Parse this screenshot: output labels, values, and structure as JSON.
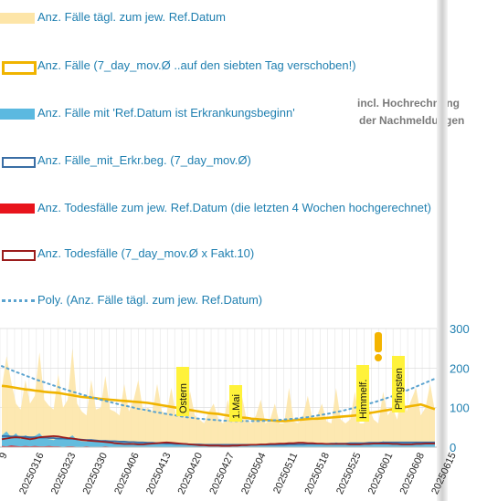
{
  "legend": [
    {
      "label": "Anz. Fälle tägl. zum jew. Ref.Datum",
      "swatch": "area",
      "color": "#fde5a8"
    },
    {
      "label": "Anz. Fälle (7_day_mov.Ø ..auf den siebten Tag verschoben!)",
      "swatch": "box",
      "color": "#f0b400"
    },
    {
      "label": "Anz. Fälle mit 'Ref.Datum ist Erkrankungsbeginn'",
      "swatch": "area",
      "color": "#5bb9e0"
    },
    {
      "label": "Anz. Fälle_mit_Erkr.beg. (7_day_mov.Ø)",
      "swatch": "box",
      "color": "#3a6ea5"
    },
    {
      "label": "Anz. Todesfälle zum jew. Ref.Datum (die letzten 4 Wochen hochgerechnet)",
      "swatch": "area",
      "color": "#e8141c"
    },
    {
      "label": "Anz. Todesfälle (7_day_mov.Ø x Fakt.10)",
      "swatch": "box",
      "color": "#9b1c1c"
    },
    {
      "label": "Poly. (Anz. Fälle tägl. zum jew. Ref.Datum)",
      "swatch": "dots",
      "color": "#5ba3cf"
    }
  ],
  "note": {
    "line1": "incl. Hochrechnung",
    "line2": "der Nachmeldungen"
  },
  "chart_data": {
    "type": "area",
    "ylim": [
      0,
      300
    ],
    "yticks": [
      0,
      100,
      200,
      300
    ],
    "x_partial_first": "9",
    "x_tick_labels": [
      "20250316",
      "20250323",
      "20250330",
      "20250406",
      "20250413",
      "20250420",
      "20250427",
      "20250504",
      "20250511",
      "20250518",
      "20250525",
      "20250601",
      "20250608",
      "20250615"
    ],
    "annotations": [
      {
        "text": "Ostern",
        "date": "20250420"
      },
      {
        "text": "1.Mai",
        "date": "20250501"
      },
      {
        "text": "Himmelf.",
        "date": "20250529"
      },
      {
        "text": "Pfingsten",
        "date": "20250608"
      }
    ],
    "series": [
      {
        "name": "Anz. Fälle tägl. zum jew. Ref.Datum",
        "style": "area",
        "color": "#fde5a8",
        "values": [
          150,
          230,
          165,
          110,
          95,
          170,
          110,
          130,
          240,
          120,
          105,
          95,
          185,
          100,
          120,
          250,
          110,
          90,
          80,
          170,
          95,
          100,
          180,
          95,
          90,
          80,
          160,
          90,
          120,
          170,
          90,
          100,
          90,
          160,
          90,
          85,
          150,
          80,
          90,
          85,
          140,
          80,
          70,
          60,
          90,
          110,
          70,
          60,
          120,
          70,
          65,
          130,
          70,
          60,
          80,
          120,
          60,
          70,
          110,
          60,
          60,
          150,
          65,
          60,
          80,
          130,
          70,
          80,
          110,
          65,
          60,
          150,
          70,
          60,
          70,
          140,
          60,
          60,
          100,
          70,
          60,
          140,
          80,
          100,
          70,
          150,
          90,
          120,
          150,
          80,
          100,
          160,
          90
        ]
      },
      {
        "name": "Anz. Fälle (7_day_mov.Ø ..auf den siebten Tag verschoben!)",
        "style": "line",
        "color": "#f0b400",
        "values": [
          155,
          154,
          152,
          150,
          148,
          146,
          145,
          143,
          142,
          140,
          139,
          138,
          137,
          135,
          133,
          131,
          129,
          127,
          126,
          125,
          124,
          122,
          121,
          120,
          119,
          118,
          117,
          116,
          115,
          114,
          113,
          112,
          110,
          108,
          106,
          104,
          102,
          100,
          98,
          96,
          94,
          92,
          90,
          88,
          86,
          85,
          84,
          82,
          80,
          78,
          77,
          75,
          74,
          72,
          71,
          70,
          69,
          68,
          67,
          66,
          66,
          67,
          68,
          69,
          70,
          71,
          72,
          72,
          73,
          74,
          75,
          76,
          77,
          78,
          79,
          80,
          82,
          84,
          86,
          88,
          90,
          92,
          94,
          96,
          98,
          100,
          102,
          104,
          106,
          108,
          104,
          100,
          96
        ]
      },
      {
        "name": "Anz. Fälle mit 'Ref.Datum ist Erkrankungsbeginn'",
        "style": "area",
        "color": "#5bb9e0",
        "values": [
          30,
          40,
          25,
          35,
          20,
          30,
          25,
          28,
          35,
          22,
          20,
          18,
          25,
          20,
          22,
          30,
          18,
          15,
          14,
          20,
          16,
          15,
          18,
          14,
          12,
          12,
          15,
          12,
          10,
          14,
          10,
          10,
          9,
          12,
          8,
          8,
          10,
          7,
          8,
          7,
          9,
          6,
          6,
          5,
          6,
          8,
          5,
          5,
          7,
          5,
          5,
          8,
          5,
          5,
          6,
          8,
          5,
          5,
          7,
          5,
          5,
          10,
          6,
          5,
          6,
          10,
          8,
          8,
          10,
          6,
          6,
          12,
          8,
          6,
          7,
          12,
          8,
          8,
          12,
          10,
          8,
          15,
          10,
          12,
          10,
          14,
          12,
          10,
          14,
          10,
          12,
          14,
          10
        ]
      },
      {
        "name": "Anz. Fälle_mit_Erkr.beg. (7_day_mov.Ø)",
        "style": "line",
        "color": "#3a6ea5",
        "values": [
          28,
          28,
          27,
          27,
          26,
          26,
          25,
          25,
          24,
          24,
          23,
          23,
          22,
          22,
          21,
          21,
          20,
          19,
          18,
          18,
          17,
          16,
          16,
          15,
          15,
          14,
          14,
          13,
          13,
          12,
          12,
          11,
          11,
          10,
          10,
          9,
          9,
          8,
          8,
          8,
          7,
          7,
          7,
          6,
          6,
          6,
          6,
          6,
          6,
          6,
          6,
          6,
          6,
          6,
          6,
          6,
          6,
          6,
          6,
          6,
          6,
          7,
          7,
          7,
          7,
          8,
          8,
          8,
          8,
          8,
          9,
          9,
          9,
          9,
          10,
          10,
          10,
          10,
          11,
          11,
          11,
          12,
          12,
          12,
          12,
          12,
          12,
          12,
          12,
          12,
          12,
          12,
          12
        ]
      },
      {
        "name": "Anz. Todesfälle zum jew. Ref.Datum (die letzten 4 Wochen hochgerechnet)",
        "style": "area",
        "color": "#e8141c",
        "values": [
          3,
          2,
          4,
          3,
          2,
          3,
          2,
          3,
          2,
          2,
          3,
          2,
          2,
          1,
          2,
          2,
          1,
          1,
          2,
          1,
          1,
          1,
          2,
          1,
          1,
          1,
          1,
          1,
          1,
          1,
          0,
          1,
          0,
          1,
          0,
          1,
          0,
          1,
          0,
          1,
          0,
          1,
          0,
          1,
          0,
          1,
          0,
          0,
          1,
          0,
          0,
          1,
          0,
          0,
          1,
          0,
          0,
          1,
          0,
          0,
          1,
          0,
          1,
          0,
          1,
          0,
          1,
          0,
          1,
          0,
          1,
          0,
          1,
          0,
          1,
          0,
          1,
          0,
          1,
          0,
          1,
          0,
          1,
          0,
          1,
          0,
          1,
          0,
          0,
          1,
          0,
          0,
          1
        ]
      },
      {
        "name": "Anz. Todesfälle (7_day_mov.Ø x Fakt.10)",
        "style": "line",
        "color": "#9b1c1c",
        "values": [
          20,
          22,
          24,
          25,
          24,
          22,
          20,
          22,
          25,
          26,
          27,
          28,
          27,
          25,
          23,
          22,
          20,
          18,
          17,
          16,
          15,
          14,
          13,
          12,
          10,
          9,
          8,
          8,
          8,
          7,
          7,
          8,
          9,
          10,
          11,
          12,
          11,
          10,
          9,
          8,
          7,
          6,
          5,
          5,
          4,
          4,
          4,
          3,
          3,
          4,
          4,
          5,
          5,
          6,
          6,
          7,
          7,
          8,
          8,
          9,
          9,
          10,
          10,
          11,
          11,
          10,
          10,
          9,
          9,
          8,
          8,
          8,
          8,
          8,
          7,
          7,
          7,
          8,
          8,
          9,
          9,
          9,
          9,
          8,
          8,
          7,
          7,
          7,
          8,
          8,
          9,
          9,
          9
        ]
      },
      {
        "name": "Poly. (Anz. Fälle tägl. zum jew. Ref.Datum)",
        "style": "dots",
        "color": "#5ba3cf",
        "values": [
          205,
          200,
          195,
          190,
          186,
          181,
          177,
          172,
          168,
          164,
          160,
          156,
          152,
          148,
          144,
          140,
          137,
          133,
          130,
          126,
          123,
          120,
          117,
          114,
          111,
          108,
          105,
          103,
          100,
          97,
          95,
          93,
          90,
          88,
          86,
          84,
          82,
          80,
          78,
          76,
          75,
          73,
          72,
          71,
          70,
          69,
          68,
          67,
          67,
          66,
          66,
          66,
          66,
          66,
          66,
          66,
          67,
          67,
          68,
          69,
          70,
          71,
          72,
          73,
          75,
          76,
          78,
          80,
          82,
          84,
          86,
          89,
          91,
          94,
          97,
          100,
          103,
          106,
          110,
          113,
          117,
          121,
          125,
          129,
          134,
          138,
          143,
          148,
          153,
          158,
          163,
          168,
          173
        ]
      }
    ]
  }
}
